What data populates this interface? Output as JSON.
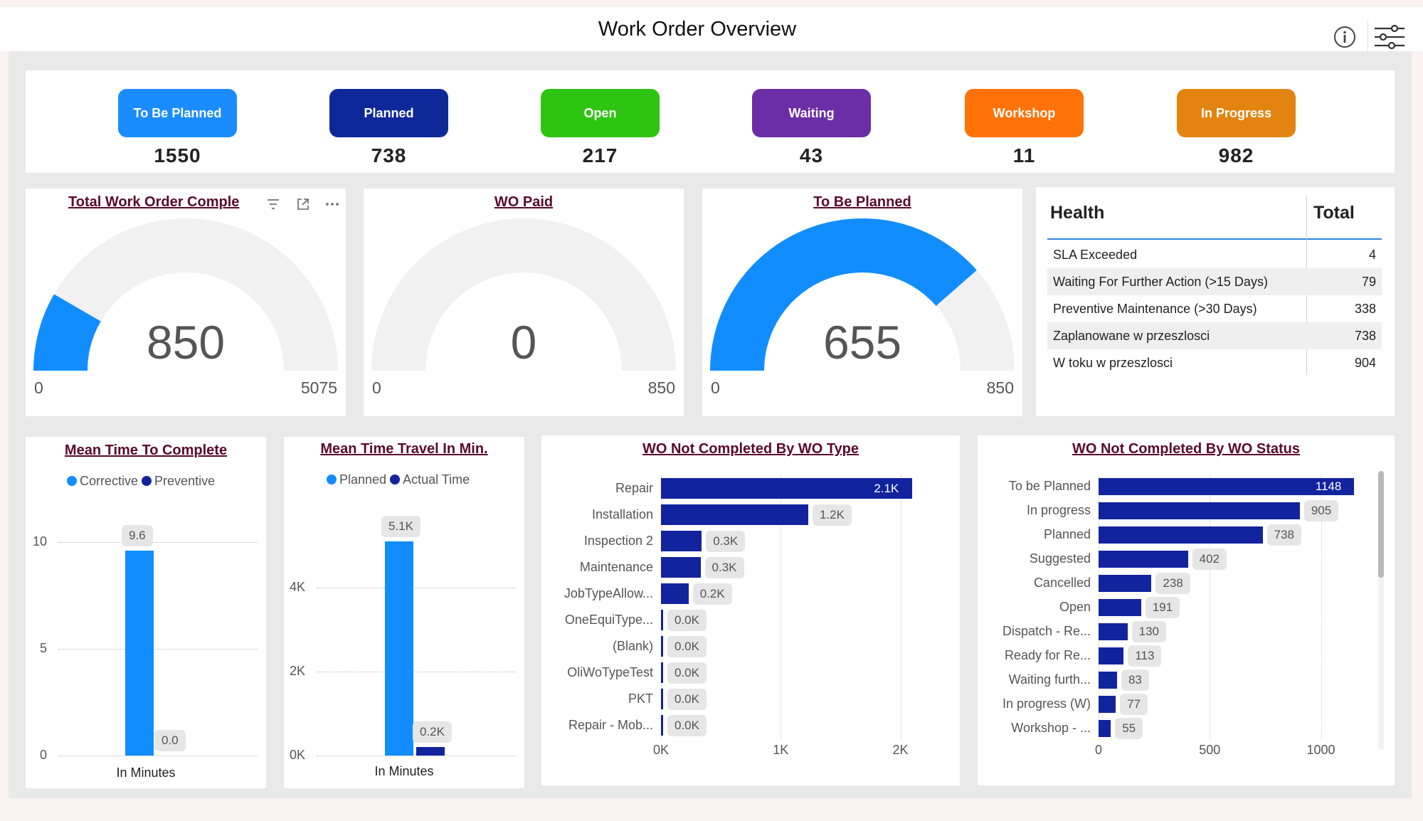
{
  "header": {
    "title": "Work Order Overview",
    "info_icon": "info-icon",
    "filter_icon": "filter-sliders-icon"
  },
  "status_cards": [
    {
      "label": "To Be Planned",
      "value": "1550",
      "color": "#1a8cff"
    },
    {
      "label": "Planned",
      "value": "738",
      "color": "#0f2899"
    },
    {
      "label": "Open",
      "value": "217",
      "color": "#2ec412"
    },
    {
      "label": "Waiting",
      "value": "43",
      "color": "#6b2ea6"
    },
    {
      "label": "Workshop",
      "value": "11",
      "color": "#ff7207"
    },
    {
      "label": "In Progress",
      "value": "982",
      "color": "#e2840f"
    }
  ],
  "gauges": [
    {
      "title": "Total Work Order Comple",
      "value": "850",
      "min": "0",
      "max": "5075",
      "fraction": 0.1675
    },
    {
      "title": "WO Paid",
      "value": "0",
      "min": "0",
      "max": "850",
      "fraction": 0
    },
    {
      "title": "To Be Planned",
      "value": "655",
      "min": "0",
      "max": "850",
      "fraction": 0.7706
    }
  ],
  "health_table": {
    "col1": "Health",
    "col2": "Total",
    "rows": [
      {
        "label": "SLA Exceeded",
        "value": "4"
      },
      {
        "label": "Waiting For Further Action (>15 Days)",
        "value": "79"
      },
      {
        "label": "Preventive Maintenance (>30 Days)",
        "value": "338"
      },
      {
        "label": "Zaplanowane w przeszlosci",
        "value": "738"
      },
      {
        "label": "W toku w przeszlosci",
        "value": "904"
      }
    ]
  },
  "chart_data": [
    {
      "type": "bar",
      "title": "Mean Time To Complete",
      "xlabel": "In Minutes",
      "categories": [
        "In Minutes"
      ],
      "series": [
        {
          "name": "Corrective",
          "values": [
            9.6
          ],
          "label": "9.6",
          "color": "#118dff"
        },
        {
          "name": "Preventive",
          "values": [
            0.0
          ],
          "label": "0.0",
          "color": "#12239e"
        }
      ],
      "yticks": [
        "0",
        "5",
        "10"
      ],
      "ylim": [
        0,
        11
      ],
      "legend": "top"
    },
    {
      "type": "bar",
      "title": "Mean Time Travel In Min.",
      "xlabel": "In Minutes",
      "categories": [
        "In Minutes"
      ],
      "series": [
        {
          "name": "Planned",
          "values": [
            5100
          ],
          "label": "5.1K",
          "color": "#118dff"
        },
        {
          "name": "Actual Time",
          "values": [
            200
          ],
          "label": "0.2K",
          "color": "#12239e"
        }
      ],
      "yticks": [
        "0K",
        "2K",
        "4K"
      ],
      "ylim": [
        0,
        5600
      ],
      "legend": "top"
    },
    {
      "type": "bar",
      "orientation": "horizontal",
      "title": "WO Not Completed By WO Type",
      "categories": [
        "Repair",
        "Installation",
        "Inspection 2",
        "Maintenance",
        "JobTypeAllow...",
        "OneEquiType...",
        "(Blank)",
        "OliWoTypeTest",
        "PKT",
        "Repair - Mob..."
      ],
      "values": [
        2100,
        1230,
        340,
        330,
        230,
        15,
        10,
        8,
        8,
        5
      ],
      "labels": [
        "2.1K",
        "1.2K",
        "0.3K",
        "0.3K",
        "0.2K",
        "0.0K",
        "0.0K",
        "0.0K",
        "0.0K",
        "0.0K"
      ],
      "xticks": [
        "0K",
        "1K",
        "2K"
      ],
      "xlim": [
        0,
        2300
      ],
      "color": "#12239e"
    },
    {
      "type": "bar",
      "orientation": "horizontal",
      "title": "WO Not Completed By WO Status",
      "categories": [
        "To be Planned",
        "In progress",
        "Planned",
        "Suggested",
        "Cancelled",
        "Open",
        "Dispatch - Re...",
        "Ready for Re...",
        "Waiting furth...",
        "In progress (W)",
        "Workshop - ..."
      ],
      "values": [
        1148,
        905,
        738,
        402,
        238,
        191,
        130,
        113,
        83,
        77,
        55
      ],
      "labels": [
        "1148",
        "905",
        "738",
        "402",
        "238",
        "191",
        "130",
        "113",
        "83",
        "77",
        "55"
      ],
      "xticks": [
        "0",
        "500",
        "1000"
      ],
      "xlim": [
        0,
        1200
      ],
      "color": "#12239e"
    }
  ]
}
